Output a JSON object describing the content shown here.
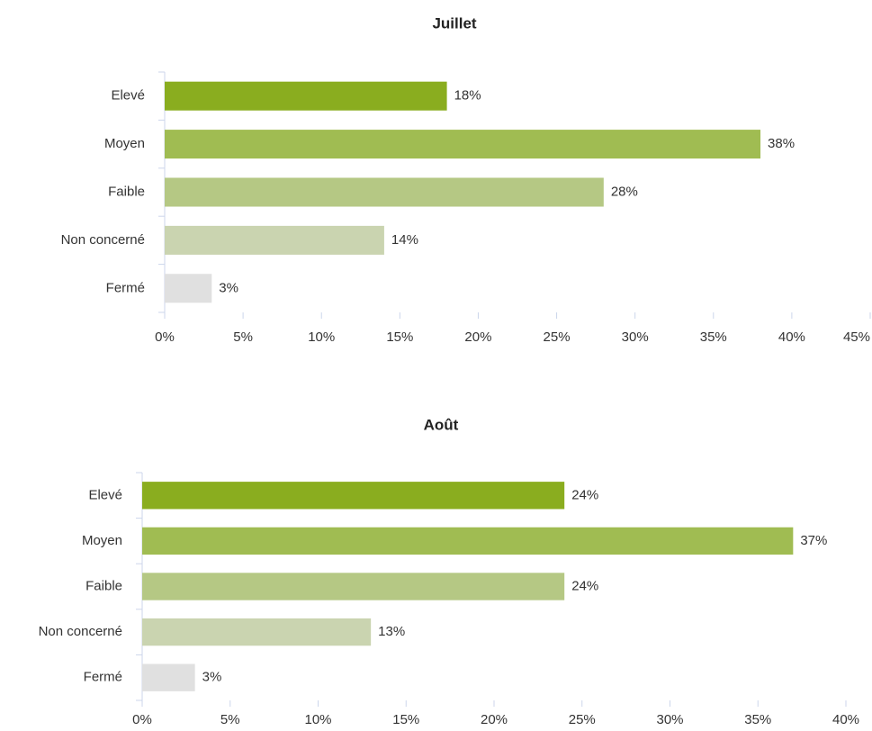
{
  "chart_data": [
    {
      "type": "bar",
      "title": "Juillet",
      "categories": [
        "Elevé",
        "Moyen",
        "Faible",
        "Non concerné",
        "Fermé"
      ],
      "values": [
        18,
        38,
        28,
        14,
        3
      ],
      "value_labels": [
        "18%",
        "38%",
        "28%",
        "14%",
        "3%"
      ],
      "colors": [
        "#8aad1f",
        "#a0bc52",
        "#b5c884",
        "#cad4b0",
        "#e0e0e0"
      ],
      "xlim": [
        0,
        45
      ],
      "xticks": [
        {
          "value": 0,
          "label": "0%"
        },
        {
          "value": 5,
          "label": "5%"
        },
        {
          "value": 10,
          "label": "10%"
        },
        {
          "value": 15,
          "label": "15%"
        },
        {
          "value": 20,
          "label": "20%"
        },
        {
          "value": 25,
          "label": "25%"
        },
        {
          "value": 30,
          "label": "30%"
        },
        {
          "value": 35,
          "label": "35%"
        },
        {
          "value": 40,
          "label": "40%"
        },
        {
          "value": 45,
          "label": "45%"
        }
      ]
    },
    {
      "type": "bar",
      "title": "Août",
      "categories": [
        "Elevé",
        "Moyen",
        "Faible",
        "Non concerné",
        "Fermé"
      ],
      "values": [
        24,
        37,
        24,
        13,
        3
      ],
      "value_labels": [
        "24%",
        "37%",
        "24%",
        "13%",
        "3%"
      ],
      "colors": [
        "#8aad1f",
        "#a0bc52",
        "#b5c884",
        "#cad4b0",
        "#e0e0e0"
      ],
      "xlim": [
        0,
        40
      ],
      "xticks": [
        {
          "value": 0,
          "label": "0%"
        },
        {
          "value": 5,
          "label": "5%"
        },
        {
          "value": 10,
          "label": "10%"
        },
        {
          "value": 15,
          "label": "15%"
        },
        {
          "value": 20,
          "label": "20%"
        },
        {
          "value": 25,
          "label": "25%"
        },
        {
          "value": 30,
          "label": "30%"
        },
        {
          "value": 35,
          "label": "35%"
        },
        {
          "value": 40,
          "label": "40%"
        }
      ]
    }
  ]
}
